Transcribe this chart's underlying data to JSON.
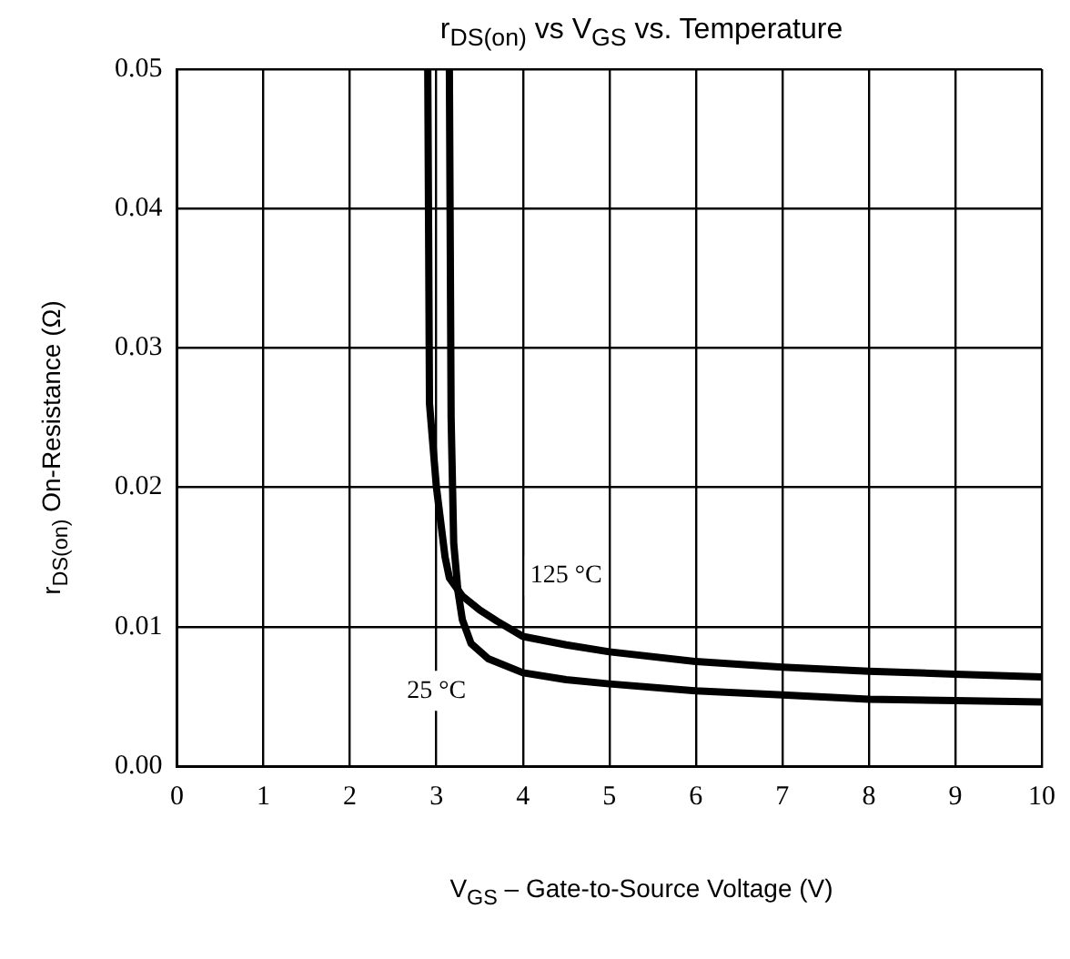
{
  "chart_data": {
    "type": "line",
    "title": "r$_{DS(on)}$ vs V$_{GS}$ vs. Temperature",
    "xlabel": "V$_{GS}$ – Gate-to-Source Voltage (V)",
    "ylabel": "r$_{DS(on)}$ On-Resistance (Ω)",
    "xlim": [
      0,
      10
    ],
    "xticks": [
      0,
      1,
      2,
      3,
      4,
      5,
      6,
      7,
      8,
      9,
      10
    ],
    "ylim": [
      0,
      0.05
    ],
    "yticks": [
      {
        "value": 0,
        "label": "0.00"
      },
      0.01,
      0.02,
      0.03,
      0.04,
      0.05
    ],
    "grid": true,
    "legend": false,
    "marker": "none",
    "line_style": "solid",
    "series": [
      {
        "name": "125 °C",
        "color": "#000000",
        "x": [
          2.9,
          2.92,
          3.0,
          3.1,
          3.15,
          3.3,
          3.5,
          3.7,
          4.0,
          4.5,
          5.0,
          6.0,
          7.0,
          8.0,
          9.0,
          10.0
        ],
        "values": [
          0.05,
          0.026,
          0.02,
          0.015,
          0.0135,
          0.0122,
          0.0112,
          0.0104,
          0.0093,
          0.0087,
          0.0082,
          0.0075,
          0.0071,
          0.0068,
          0.0066,
          0.0064
        ]
      },
      {
        "name": "25 °C",
        "color": "#000000",
        "x": [
          3.15,
          3.17,
          3.2,
          3.25,
          3.3,
          3.4,
          3.6,
          4.0,
          4.5,
          5.0,
          6.0,
          7.0,
          8.0,
          9.0,
          10.0
        ],
        "values": [
          0.05,
          0.025,
          0.016,
          0.0125,
          0.0105,
          0.0088,
          0.0077,
          0.0067,
          0.0062,
          0.0059,
          0.0054,
          0.0051,
          0.0048,
          0.0047,
          0.0046
        ]
      }
    ]
  }
}
